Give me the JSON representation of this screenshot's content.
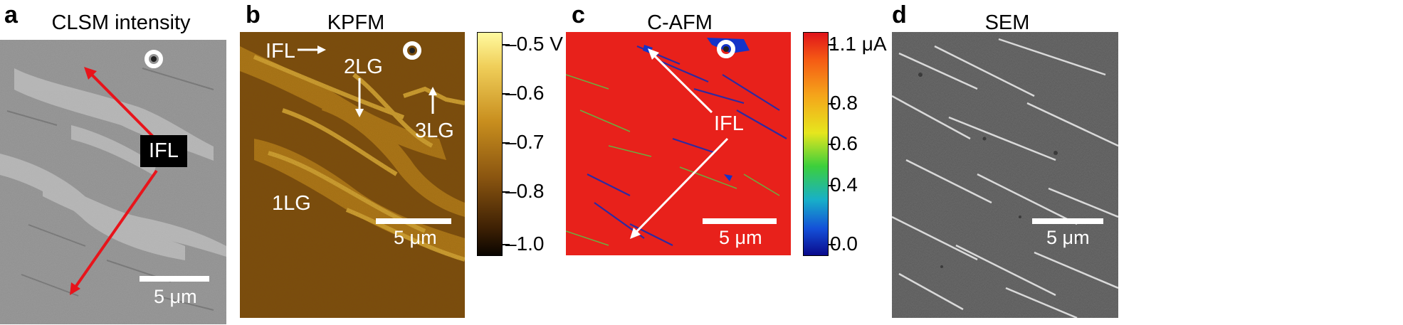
{
  "panels": {
    "a": {
      "letter": "a",
      "title": "CLSM intensity",
      "scale_label": "5 μm",
      "annotation": "IFL"
    },
    "b": {
      "letter": "b",
      "title": "KPFM",
      "scale_label": "5 μm",
      "labels": {
        "ifl": "IFL",
        "lg2": "2LG",
        "lg3": "3LG",
        "lg1": "1LG"
      },
      "colorbar": {
        "ticks": [
          "–0.5 V",
          "–0.6",
          "–0.7",
          "–0.8",
          "–1.0"
        ]
      }
    },
    "c": {
      "letter": "c",
      "title": "C-AFM",
      "scale_label": "5 μm",
      "annotation": "IFL",
      "colorbar": {
        "ticks": [
          "1.1 μA",
          "0.8",
          "0.6",
          "0.4",
          "0.0"
        ]
      }
    },
    "d": {
      "letter": "d",
      "title": "SEM",
      "scale_label": "5 μm"
    }
  },
  "colors": {
    "arrow_red": "#e8141b",
    "cafm_background": "#e8211b",
    "annotation_white": "#ffffff"
  }
}
